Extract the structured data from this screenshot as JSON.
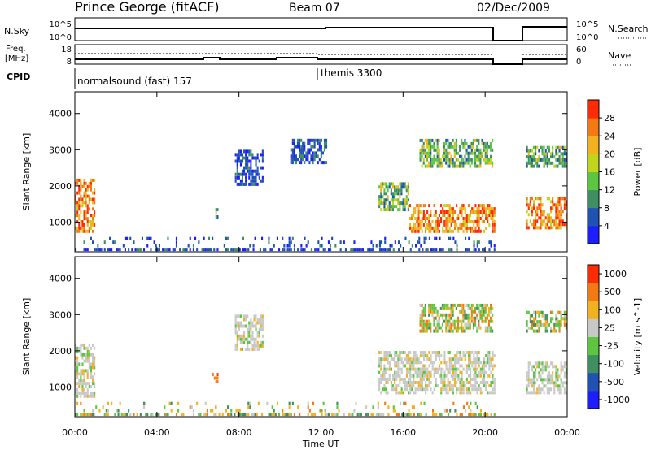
{
  "header": {
    "station": "Prince George (fitACF)",
    "beam": "Beam 07",
    "date": "02/Dec/2009"
  },
  "top_panels": {
    "nsky": {
      "label": "N.Sky",
      "tick_hi": "10^5",
      "tick_lo": "10^0"
    },
    "nsearch": {
      "label": "N.Search",
      "tick_hi": "10^5",
      "tick_lo": "10^0"
    },
    "freq": {
      "label_line1": "Freq.",
      "label_line2": "[MHz]",
      "tick_hi": "18",
      "tick_lo": "8"
    },
    "nave": {
      "label": "Nave",
      "tick_hi": "60",
      "tick_lo": "0"
    },
    "cpid": {
      "label": "CPID",
      "programs": [
        {
          "name": "normalsound (fast) 157",
          "start_hour": 0
        },
        {
          "name": "themis 3300",
          "start_hour": 12
        }
      ]
    }
  },
  "chart_data": [
    {
      "type": "heatmap",
      "quantity": "Power",
      "ylabel": "Slant Range [km]",
      "xlabel": "Time UT",
      "yticks": [
        1000,
        2000,
        3000,
        4000
      ],
      "ylim": [
        180,
        4600
      ],
      "xlim": [
        0,
        24
      ],
      "xticks": [
        "00:00",
        "04:00",
        "08:00",
        "12:00",
        "16:00",
        "20:00",
        "00:00"
      ],
      "colorbar": {
        "label": "Power [dB]",
        "ticks": [
          "4",
          "8",
          "12",
          "16",
          "20",
          "24",
          "28"
        ],
        "colors": [
          "#1d1dff",
          "#1f52b3",
          "#3f8f62",
          "#5cc640",
          "#bfd61a",
          "#f2b21f",
          "#f37a12",
          "#ff2b05"
        ]
      },
      "echo_regions": [
        {
          "t0": 0.0,
          "t1": 1.0,
          "r0": 700,
          "r1": 2200,
          "palette": "power-strong"
        },
        {
          "t0": 6.7,
          "t1": 7.0,
          "r0": 1100,
          "r1": 1400,
          "palette": "power-mid"
        },
        {
          "t0": 7.8,
          "t1": 9.2,
          "r0": 2000,
          "r1": 3000,
          "palette": "power-weak"
        },
        {
          "t0": 10.5,
          "t1": 12.3,
          "r0": 2600,
          "r1": 3300,
          "palette": "power-weak"
        },
        {
          "t0": 14.8,
          "t1": 16.3,
          "r0": 1300,
          "r1": 2100,
          "palette": "power-mid"
        },
        {
          "t0": 16.3,
          "t1": 20.5,
          "r0": 700,
          "r1": 1500,
          "palette": "power-strong"
        },
        {
          "t0": 16.8,
          "t1": 20.4,
          "r0": 2500,
          "r1": 3300,
          "palette": "power-mid"
        },
        {
          "t0": 22.0,
          "t1": 24.0,
          "r0": 800,
          "r1": 1700,
          "palette": "power-strong"
        },
        {
          "t0": 22.0,
          "t1": 24.0,
          "r0": 2500,
          "r1": 3100,
          "palette": "power-mid"
        },
        {
          "t0": 0.0,
          "t1": 20.5,
          "r0": 200,
          "r1": 600,
          "palette": "power-weak"
        }
      ],
      "data_gaps": [
        [
          20.5,
          22.0
        ]
      ]
    },
    {
      "type": "heatmap",
      "quantity": "Velocity",
      "ylabel": "Slant Range [km]",
      "xlabel": "Time UT",
      "yticks": [
        1000,
        2000,
        3000,
        4000
      ],
      "ylim": [
        180,
        4600
      ],
      "xlim": [
        0,
        24
      ],
      "xticks": [
        "00:00",
        "04:00",
        "08:00",
        "12:00",
        "16:00",
        "20:00",
        "00:00"
      ],
      "colorbar": {
        "label": "Velocity [m s^-1]",
        "ticks": [
          "1000",
          "500",
          "100",
          "25",
          "-25",
          "-100",
          "-500",
          "-1000"
        ],
        "colors": [
          "#1d1dff",
          "#1f52b3",
          "#3f8f62",
          "#5cc640",
          "#c8c8c8",
          "#f2b21f",
          "#f37a12",
          "#ff2b05"
        ]
      },
      "echo_regions": [
        {
          "t0": 0.0,
          "t1": 1.0,
          "r0": 700,
          "r1": 2200,
          "palette": "vel-ground"
        },
        {
          "t0": 6.7,
          "t1": 7.0,
          "r0": 1100,
          "r1": 1400,
          "palette": "vel-away"
        },
        {
          "t0": 7.8,
          "t1": 9.2,
          "r0": 2000,
          "r1": 3000,
          "palette": "vel-ground"
        },
        {
          "t0": 14.8,
          "t1": 20.5,
          "r0": 800,
          "r1": 2000,
          "palette": "vel-ground"
        },
        {
          "t0": 16.8,
          "t1": 20.4,
          "r0": 2500,
          "r1": 3300,
          "palette": "vel-mixed"
        },
        {
          "t0": 22.0,
          "t1": 24.0,
          "r0": 800,
          "r1": 1700,
          "palette": "vel-ground"
        },
        {
          "t0": 22.0,
          "t1": 24.0,
          "r0": 2500,
          "r1": 3100,
          "palette": "vel-mixed"
        },
        {
          "t0": 0.0,
          "t1": 20.5,
          "r0": 200,
          "r1": 600,
          "palette": "vel-near"
        }
      ],
      "data_gaps": [
        [
          20.5,
          22.0
        ]
      ]
    }
  ]
}
